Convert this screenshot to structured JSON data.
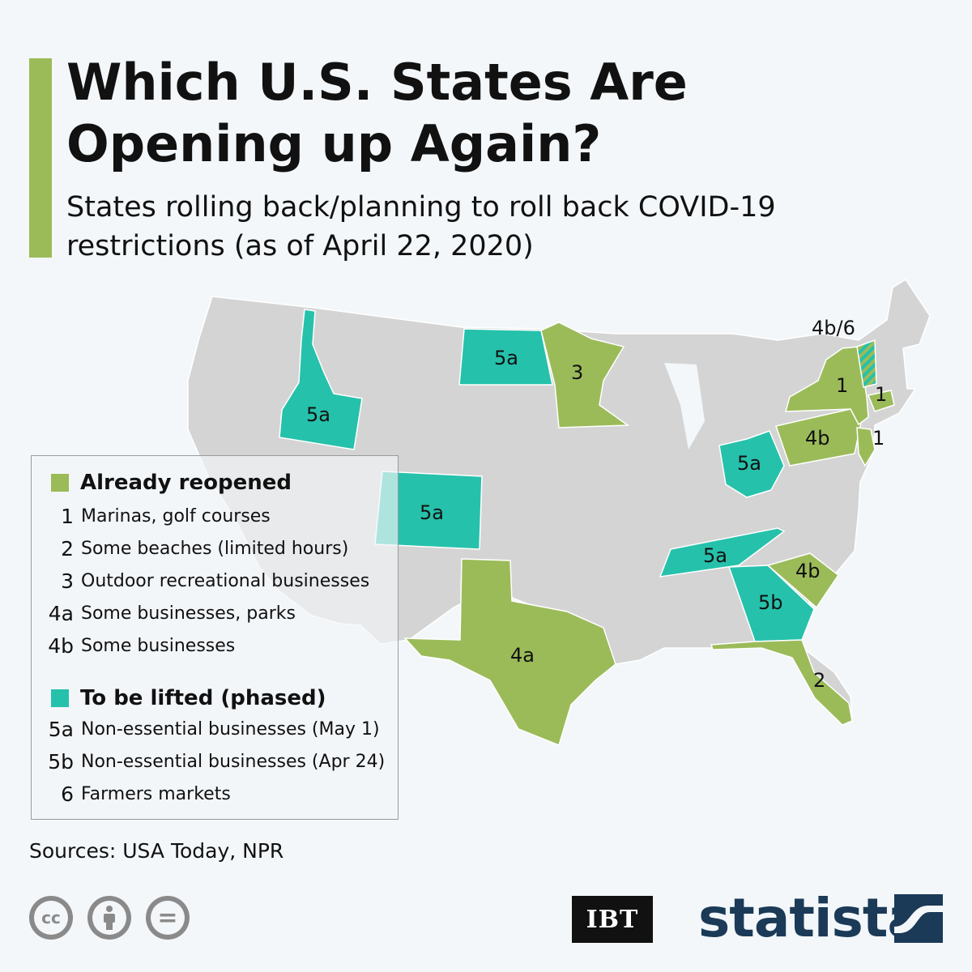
{
  "header": {
    "title": "Which U.S. States Are Opening up Again?",
    "subtitle": "States rolling back/planning to roll back COVID-19 restrictions (as of April 22, 2020)"
  },
  "colors": {
    "background": "#f3f7fa",
    "accent": "#9bbb59",
    "already_reopened": "#9bbb59",
    "to_be_lifted": "#26c1ab",
    "no_change": "#d4d4d4"
  },
  "map": {
    "states": [
      {
        "name": "Idaho",
        "status": "to-be-lifted",
        "label": "5a"
      },
      {
        "name": "North Dakota",
        "status": "to-be-lifted",
        "label": "5a"
      },
      {
        "name": "Minnesota",
        "status": "already-reopened",
        "label": "3"
      },
      {
        "name": "Colorado",
        "status": "to-be-lifted",
        "label": "5a"
      },
      {
        "name": "Texas",
        "status": "already-reopened",
        "label": "4a"
      },
      {
        "name": "Ohio",
        "status": "to-be-lifted",
        "label": "5a"
      },
      {
        "name": "Tennessee",
        "status": "to-be-lifted",
        "label": "5a"
      },
      {
        "name": "Georgia",
        "status": "to-be-lifted",
        "label": "5b"
      },
      {
        "name": "South Carolina",
        "status": "already-reopened",
        "label": "4b"
      },
      {
        "name": "Florida",
        "status": "already-reopened",
        "label": "2"
      },
      {
        "name": "Pennsylvania",
        "status": "already-reopened",
        "label": "4b"
      },
      {
        "name": "New York",
        "status": "already-reopened",
        "label": "1"
      },
      {
        "name": "New Jersey",
        "status": "already-reopened",
        "label": "1"
      },
      {
        "name": "Connecticut",
        "status": "already-reopened",
        "label": "1"
      },
      {
        "name": "Vermont",
        "status": "mixed",
        "label": "4b/6"
      }
    ]
  },
  "legend": {
    "group1": {
      "title": "Already reopened",
      "items": [
        {
          "code": "1",
          "desc": "Marinas, golf courses"
        },
        {
          "code": "2",
          "desc": "Some beaches (limited hours)"
        },
        {
          "code": "3",
          "desc": "Outdoor recreational businesses"
        },
        {
          "code": "4a",
          "desc": "Some businesses, parks"
        },
        {
          "code": "4b",
          "desc": "Some businesses"
        }
      ]
    },
    "group2": {
      "title": "To be lifted (phased)",
      "items": [
        {
          "code": "5a",
          "desc": "Non-essential businesses (May 1)"
        },
        {
          "code": "5b",
          "desc": "Non-essential businesses (Apr 24)"
        },
        {
          "code": "6",
          "desc": "Farmers markets"
        }
      ]
    }
  },
  "footer": {
    "sources": "Sources: USA Today, NPR",
    "license_icons": [
      "creative-commons-icon",
      "attribution-icon",
      "no-derivatives-icon"
    ],
    "cc_text": "cc",
    "nd_text": "=",
    "partner_logo": "IBT",
    "brand_logo": "statista"
  }
}
